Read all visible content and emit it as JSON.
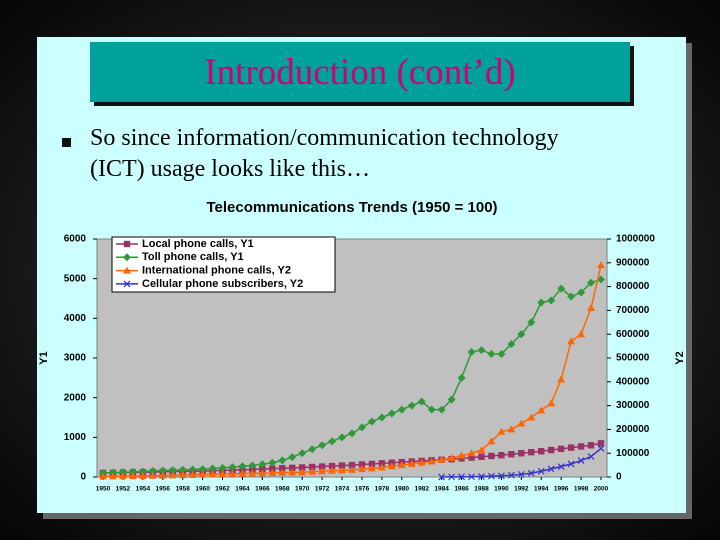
{
  "slide": {
    "title": "Introduction (cont’d)",
    "bullet": [
      "So since information/communication technology",
      "(ICT) usage looks like this…"
    ]
  },
  "chart_data": {
    "type": "line",
    "title": "Telecommunications Trends (1950 = 100)",
    "y_label": "Y1",
    "y2_label": "Y2",
    "legend": "upper left",
    "grid": false,
    "x": [
      1950,
      1951,
      1952,
      1953,
      1954,
      1955,
      1956,
      1957,
      1958,
      1959,
      1960,
      1961,
      1962,
      1963,
      1964,
      1965,
      1966,
      1967,
      1968,
      1969,
      1970,
      1971,
      1972,
      1973,
      1974,
      1975,
      1976,
      1977,
      1978,
      1979,
      1980,
      1981,
      1982,
      1983,
      1984,
      1985,
      1986,
      1987,
      1988,
      1989,
      1990,
      1991,
      1992,
      1993,
      1994,
      1995,
      1996,
      1997,
      1998,
      1999,
      2000
    ],
    "xlim": [
      1950,
      2000
    ],
    "xticks": [
      1950,
      1952,
      1954,
      1956,
      1958,
      1960,
      1962,
      1964,
      1966,
      1968,
      1970,
      1972,
      1974,
      1976,
      1978,
      1980,
      1982,
      1984,
      1986,
      1988,
      1990,
      1992,
      1994,
      1996,
      1998,
      2000
    ],
    "ylim": [
      0,
      6000
    ],
    "yticks": [
      0,
      1000,
      2000,
      3000,
      4000,
      5000,
      6000
    ],
    "y2lim": [
      0,
      1000000
    ],
    "y2ticks": [
      0,
      100000,
      200000,
      300000,
      400000,
      500000,
      600000,
      700000,
      800000,
      900000,
      1000000
    ],
    "series": [
      {
        "name": "Local phone calls, Y1",
        "color": "#993366",
        "marker": "square",
        "axis": "y1",
        "values": [
          100,
          105,
          110,
          115,
          120,
          125,
          130,
          135,
          140,
          145,
          150,
          158,
          166,
          174,
          182,
          190,
          200,
          210,
          220,
          230,
          240,
          252,
          264,
          276,
          288,
          300,
          315,
          330,
          345,
          360,
          375,
          390,
          405,
          420,
          435,
          450,
          470,
          490,
          510,
          530,
          550,
          575,
          600,
          625,
          650,
          680,
          710,
          740,
          770,
          800,
          850
        ]
      },
      {
        "name": "Toll phone calls, Y1",
        "color": "#2e9a3a",
        "marker": "diamond",
        "axis": "y1",
        "values": [
          100,
          110,
          120,
          130,
          140,
          150,
          160,
          170,
          180,
          190,
          200,
          215,
          230,
          250,
          270,
          290,
          320,
          360,
          420,
          500,
          600,
          700,
          800,
          900,
          1000,
          1100,
          1250,
          1400,
          1500,
          1600,
          1700,
          1800,
          1900,
          1700,
          1700,
          1950,
          2500,
          3150,
          3200,
          3100,
          3100,
          3350,
          3600,
          3900,
          4400,
          4450,
          4750,
          4550,
          4650,
          4900,
          4980
        ]
      },
      {
        "name": "International phone calls, Y2",
        "color": "#ff6600",
        "marker": "triangle",
        "axis": "y2",
        "values": [
          2000,
          2500,
          3000,
          3500,
          4000,
          5000,
          6000,
          7000,
          8000,
          9000,
          10000,
          11000,
          12000,
          13000,
          14000,
          15000,
          16000,
          17000,
          18000,
          19000,
          20000,
          22000,
          24000,
          26000,
          28000,
          30000,
          33000,
          36000,
          40000,
          45000,
          50000,
          55000,
          60000,
          65000,
          72000,
          80000,
          90000,
          100000,
          113000,
          150000,
          190000,
          200000,
          225000,
          250000,
          280000,
          310000,
          410000,
          570000,
          600000,
          710000,
          890000
        ]
      },
      {
        "name": "Cellular phone subscribers, Y2",
        "color": "#3333cc",
        "marker": "x",
        "axis": "y2",
        "values": [
          null,
          null,
          null,
          null,
          null,
          null,
          null,
          null,
          null,
          null,
          null,
          null,
          null,
          null,
          null,
          null,
          null,
          null,
          null,
          null,
          null,
          null,
          null,
          null,
          null,
          null,
          null,
          null,
          null,
          null,
          null,
          null,
          null,
          null,
          300,
          500,
          700,
          1000,
          2000,
          3500,
          5000,
          7500,
          11000,
          16000,
          24000,
          34000,
          44000,
          55000,
          69000,
          86000,
          120000
        ]
      }
    ]
  }
}
